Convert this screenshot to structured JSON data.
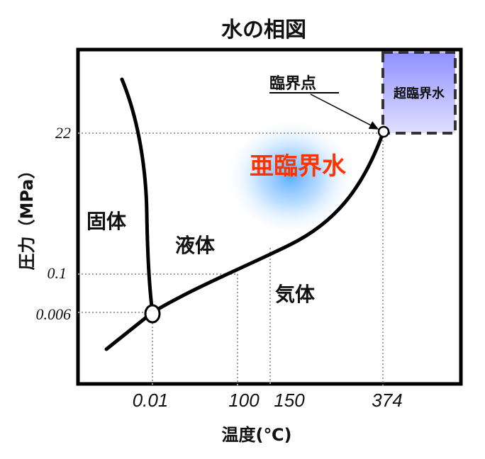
{
  "title": "水の相図",
  "regions": {
    "solid": "固体",
    "liquid": "液体",
    "gas": "気体",
    "subcritical": "亜臨界水",
    "supercritical": "超臨界水"
  },
  "critical_point_label": "臨界点",
  "y_axis": {
    "label": "圧力（MPa）",
    "ticks": [
      "22",
      "0.1",
      "0.006"
    ]
  },
  "x_axis": {
    "label": "温度(℃)",
    "ticks": [
      "0.01",
      "100",
      "150",
      "374"
    ]
  },
  "colors": {
    "subcritical_text": "#ff3300",
    "subcritical_glow": "#55aaff",
    "supercritical_fill": "#9b9bff",
    "curve": "#000000"
  }
}
